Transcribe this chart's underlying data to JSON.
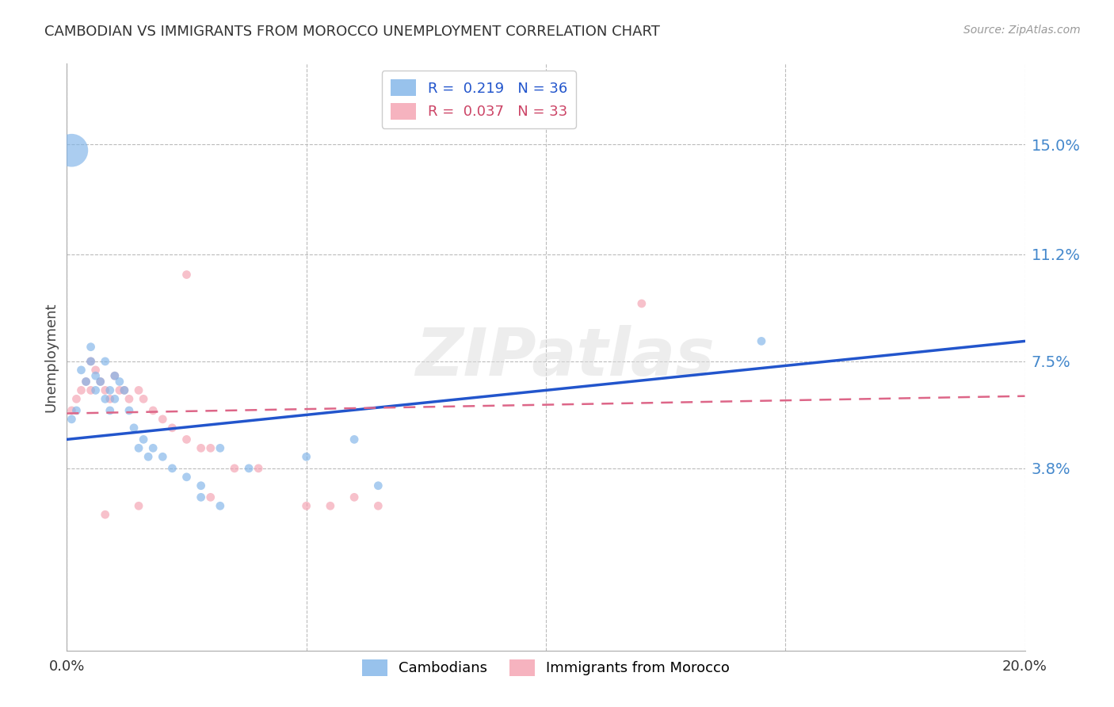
{
  "title": "CAMBODIAN VS IMMIGRANTS FROM MOROCCO UNEMPLOYMENT CORRELATION CHART",
  "source": "Source: ZipAtlas.com",
  "ylabel": "Unemployment",
  "ytick_labels": [
    "15.0%",
    "11.2%",
    "7.5%",
    "3.8%"
  ],
  "ytick_values": [
    0.15,
    0.112,
    0.075,
    0.038
  ],
  "xlim": [
    0.0,
    0.2
  ],
  "ylim": [
    -0.025,
    0.178
  ],
  "blue_color": "#7eb3e8",
  "pink_color": "#f4a0b0",
  "line_blue": "#2255cc",
  "line_pink": "#dd6688",
  "cambodian_x": [
    0.001,
    0.002,
    0.003,
    0.004,
    0.005,
    0.005,
    0.006,
    0.006,
    0.007,
    0.008,
    0.008,
    0.009,
    0.009,
    0.01,
    0.01,
    0.011,
    0.012,
    0.013,
    0.014,
    0.015,
    0.016,
    0.017,
    0.018,
    0.02,
    0.022,
    0.025,
    0.028,
    0.032,
    0.038,
    0.05,
    0.06,
    0.065,
    0.028,
    0.032,
    0.145,
    0.001
  ],
  "cambodian_y": [
    0.055,
    0.058,
    0.072,
    0.068,
    0.075,
    0.08,
    0.07,
    0.065,
    0.068,
    0.075,
    0.062,
    0.058,
    0.065,
    0.062,
    0.07,
    0.068,
    0.065,
    0.058,
    0.052,
    0.045,
    0.048,
    0.042,
    0.045,
    0.042,
    0.038,
    0.035,
    0.032,
    0.045,
    0.038,
    0.042,
    0.048,
    0.032,
    0.028,
    0.025,
    0.082,
    0.148
  ],
  "cambodian_size": [
    60,
    60,
    60,
    60,
    60,
    60,
    60,
    60,
    60,
    60,
    60,
    60,
    60,
    60,
    60,
    60,
    60,
    60,
    60,
    60,
    60,
    60,
    60,
    60,
    60,
    60,
    60,
    60,
    60,
    60,
    60,
    60,
    60,
    60,
    60,
    900
  ],
  "morocco_x": [
    0.001,
    0.002,
    0.003,
    0.004,
    0.005,
    0.005,
    0.006,
    0.007,
    0.008,
    0.009,
    0.01,
    0.011,
    0.012,
    0.013,
    0.015,
    0.016,
    0.018,
    0.02,
    0.022,
    0.025,
    0.028,
    0.03,
    0.035,
    0.04,
    0.05,
    0.055,
    0.06,
    0.065,
    0.025,
    0.03,
    0.12,
    0.015,
    0.008
  ],
  "morocco_y": [
    0.058,
    0.062,
    0.065,
    0.068,
    0.075,
    0.065,
    0.072,
    0.068,
    0.065,
    0.062,
    0.07,
    0.065,
    0.065,
    0.062,
    0.065,
    0.062,
    0.058,
    0.055,
    0.052,
    0.048,
    0.045,
    0.045,
    0.038,
    0.038,
    0.025,
    0.025,
    0.028,
    0.025,
    0.105,
    0.028,
    0.095,
    0.025,
    0.022
  ],
  "morocco_size": [
    60,
    60,
    60,
    60,
    60,
    60,
    60,
    60,
    60,
    60,
    60,
    60,
    60,
    60,
    60,
    60,
    60,
    60,
    60,
    60,
    60,
    60,
    60,
    60,
    60,
    60,
    60,
    60,
    60,
    60,
    60,
    60,
    60
  ],
  "watermark": "ZIPatlas",
  "background_color": "#ffffff",
  "grid_color": "#bbbbbb",
  "cam_line_x": [
    0.0,
    0.2
  ],
  "cam_line_y": [
    0.048,
    0.082
  ],
  "mor_line_x": [
    0.0,
    0.2
  ],
  "mor_line_y": [
    0.057,
    0.063
  ]
}
